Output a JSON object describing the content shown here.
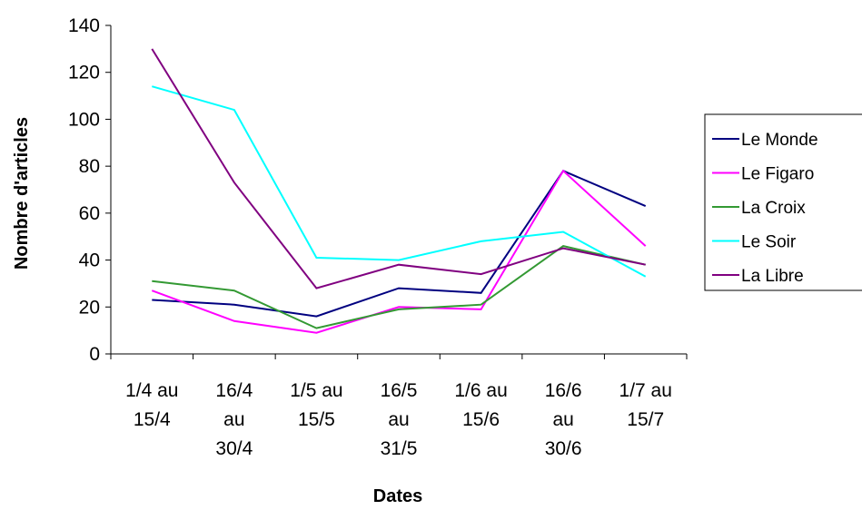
{
  "chart_data": {
    "type": "line",
    "categories": [
      [
        "1/4 au",
        "15/4"
      ],
      [
        "16/4",
        "au",
        "30/4"
      ],
      [
        "1/5 au",
        "15/5"
      ],
      [
        "16/5",
        "au",
        "31/5"
      ],
      [
        "1/6 au",
        "15/6"
      ],
      [
        "16/6",
        "au",
        "30/6"
      ],
      [
        "1/7 au",
        "15/7"
      ]
    ],
    "series": [
      {
        "name": "Le Monde",
        "color": "#000080",
        "values": [
          23,
          21,
          16,
          28,
          26,
          78,
          63
        ]
      },
      {
        "name": "Le Figaro",
        "color": "#ff00ff",
        "values": [
          27,
          14,
          9,
          20,
          19,
          78,
          46
        ]
      },
      {
        "name": "La Croix",
        "color": "#339933",
        "values": [
          31,
          27,
          11,
          19,
          21,
          46,
          38
        ]
      },
      {
        "name": "Le Soir",
        "color": "#00ffff",
        "values": [
          114,
          104,
          41,
          40,
          48,
          52,
          33
        ]
      },
      {
        "name": "La Libre",
        "color": "#800080",
        "values": [
          130,
          73,
          28,
          38,
          34,
          45,
          38
        ]
      }
    ],
    "xlabel": "Dates",
    "ylabel": "Nombre d'articles",
    "ylim": [
      0,
      140
    ],
    "yticks": [
      0,
      20,
      40,
      60,
      80,
      100,
      120,
      140
    ],
    "grid": false,
    "legend": "right"
  }
}
